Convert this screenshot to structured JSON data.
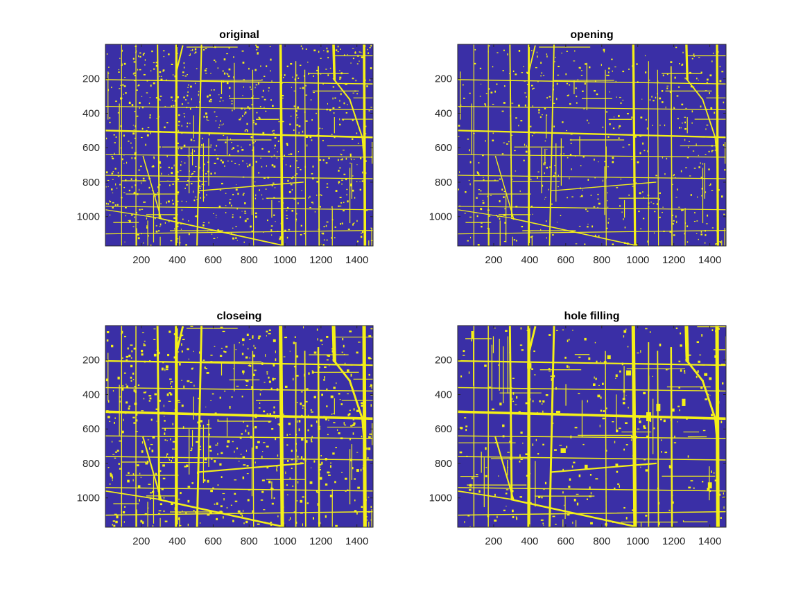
{
  "figure": {
    "background": "#ffffff",
    "map_background_color": "#3a2fa6",
    "road_color": "#f4f018",
    "panels": [
      {
        "title": "original",
        "xticks": [
          "200",
          "400",
          "600",
          "800",
          "1000",
          "1200",
          "1400"
        ],
        "yticks": [
          "200",
          "400",
          "600",
          "800",
          "1000"
        ]
      },
      {
        "title": "opening",
        "xticks": [
          "200",
          "400",
          "600",
          "800",
          "1000",
          "1200",
          "1400"
        ],
        "yticks": [
          "200",
          "400",
          "600",
          "800",
          "1000"
        ]
      },
      {
        "title": "closeing",
        "xticks": [
          "200",
          "400",
          "600",
          "800",
          "1000",
          "1200",
          "1400"
        ],
        "yticks": [
          "200",
          "400",
          "600",
          "800",
          "1000"
        ]
      },
      {
        "title": "hole filling",
        "xticks": [
          "200",
          "400",
          "600",
          "800",
          "1000",
          "1200",
          "1400"
        ],
        "yticks": [
          "200",
          "400",
          "600",
          "800",
          "1000"
        ]
      }
    ]
  }
}
